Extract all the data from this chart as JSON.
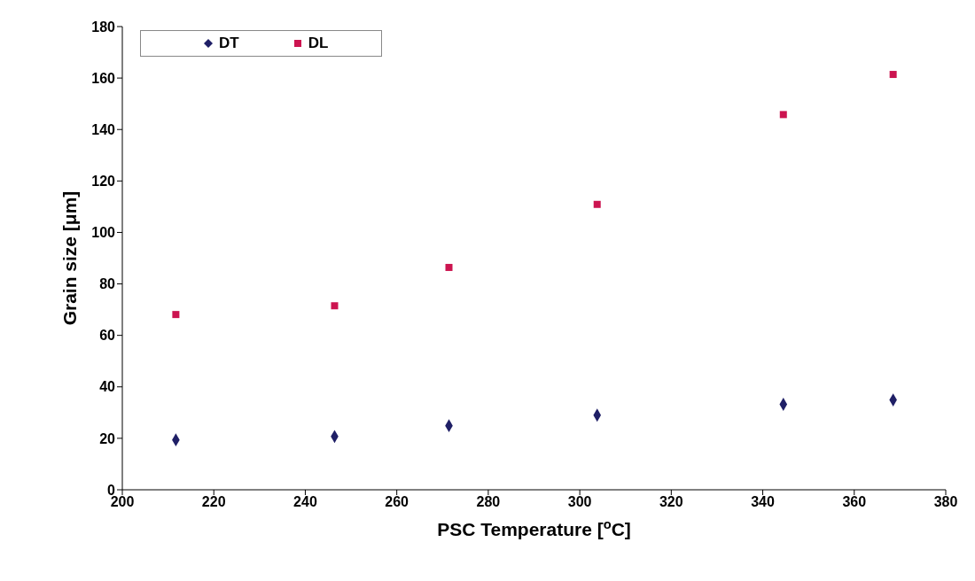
{
  "chart_data": {
    "type": "scatter",
    "xlabel": "PSC Temperature [$^{o}$C]",
    "ylabel": "Grain size [μm]",
    "xlim": [
      200,
      380
    ],
    "xticks": [
      200,
      220,
      240,
      260,
      280,
      300,
      320,
      340,
      360,
      380
    ],
    "ylim": [
      0,
      180
    ],
    "yticks": [
      0,
      20,
      40,
      60,
      80,
      100,
      120,
      140,
      160,
      180
    ],
    "grid": false,
    "legend": "top left",
    "series": [
      {
        "name": "DT",
        "color": "#1f1f66",
        "marker": "diamond",
        "x": [
          211.7,
          246.4,
          271.4,
          303.8,
          344.5,
          368.5
        ],
        "values": [
          19.4,
          20.7,
          24.9,
          29.0,
          33.2,
          34.9
        ]
      },
      {
        "name": "DL",
        "color": "#cc1450",
        "marker": "square",
        "x": [
          211.7,
          246.4,
          271.4,
          303.8,
          344.5,
          368.5
        ],
        "values": [
          68.1,
          71.5,
          86.4,
          110.9,
          145.8,
          161.4
        ]
      }
    ]
  }
}
